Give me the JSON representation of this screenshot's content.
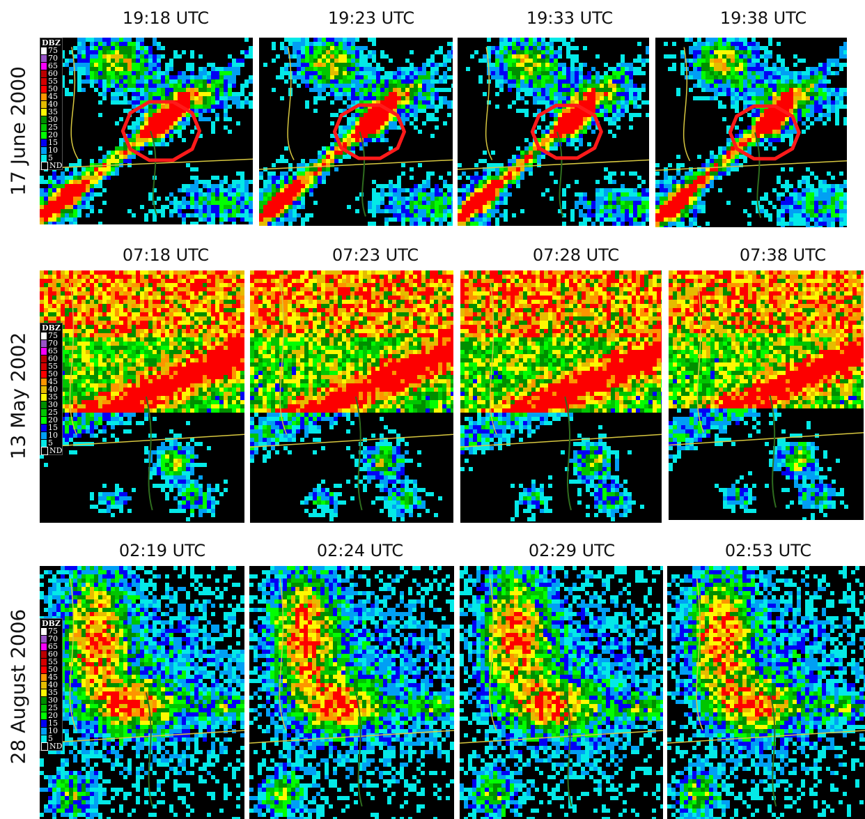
{
  "rows": [
    {
      "date": "17 June 2000",
      "times": [
        "19:18 UTC",
        "19:23 UTC",
        "19:33 UTC",
        "19:38 UTC"
      ],
      "storm_circle": true,
      "pattern": "scattered"
    },
    {
      "date": "13 May 2002",
      "times": [
        "07:18 UTC",
        "07:23 UTC",
        "07:28 UTC",
        "07:38 UTC"
      ],
      "storm_circle": false,
      "pattern": "squall"
    },
    {
      "date": "28 August 2006",
      "times": [
        "02:19 UTC",
        "02:24 UTC",
        "02:29 UTC",
        "02:53 UTC"
      ],
      "storm_circle": false,
      "pattern": "widespread"
    }
  ],
  "legend": {
    "title": "DBZ",
    "levels": [
      {
        "label": "75",
        "color": "#ffffff"
      },
      {
        "label": "70",
        "color": "#9854c6"
      },
      {
        "label": "65",
        "color": "#f800fd"
      },
      {
        "label": "60",
        "color": "#bc0000"
      },
      {
        "label": "55",
        "color": "#d40000"
      },
      {
        "label": "50",
        "color": "#fd0000"
      },
      {
        "label": "45",
        "color": "#fd9500"
      },
      {
        "label": "40",
        "color": "#e5bc00"
      },
      {
        "label": "35",
        "color": "#fdf802"
      },
      {
        "label": "30",
        "color": "#008e00"
      },
      {
        "label": "25",
        "color": "#01c501"
      },
      {
        "label": "20",
        "color": "#02fd02"
      },
      {
        "label": "15",
        "color": "#0300f4"
      },
      {
        "label": "10",
        "color": "#019ff4"
      },
      {
        "label": "5",
        "color": "#04e9e7"
      },
      {
        "label": "ND",
        "color": "#000000"
      }
    ]
  },
  "colors": {
    "background": "#000000",
    "boundary": "#d8c840",
    "river": "#2f6d1e",
    "highlight": "#ff1a1a"
  }
}
